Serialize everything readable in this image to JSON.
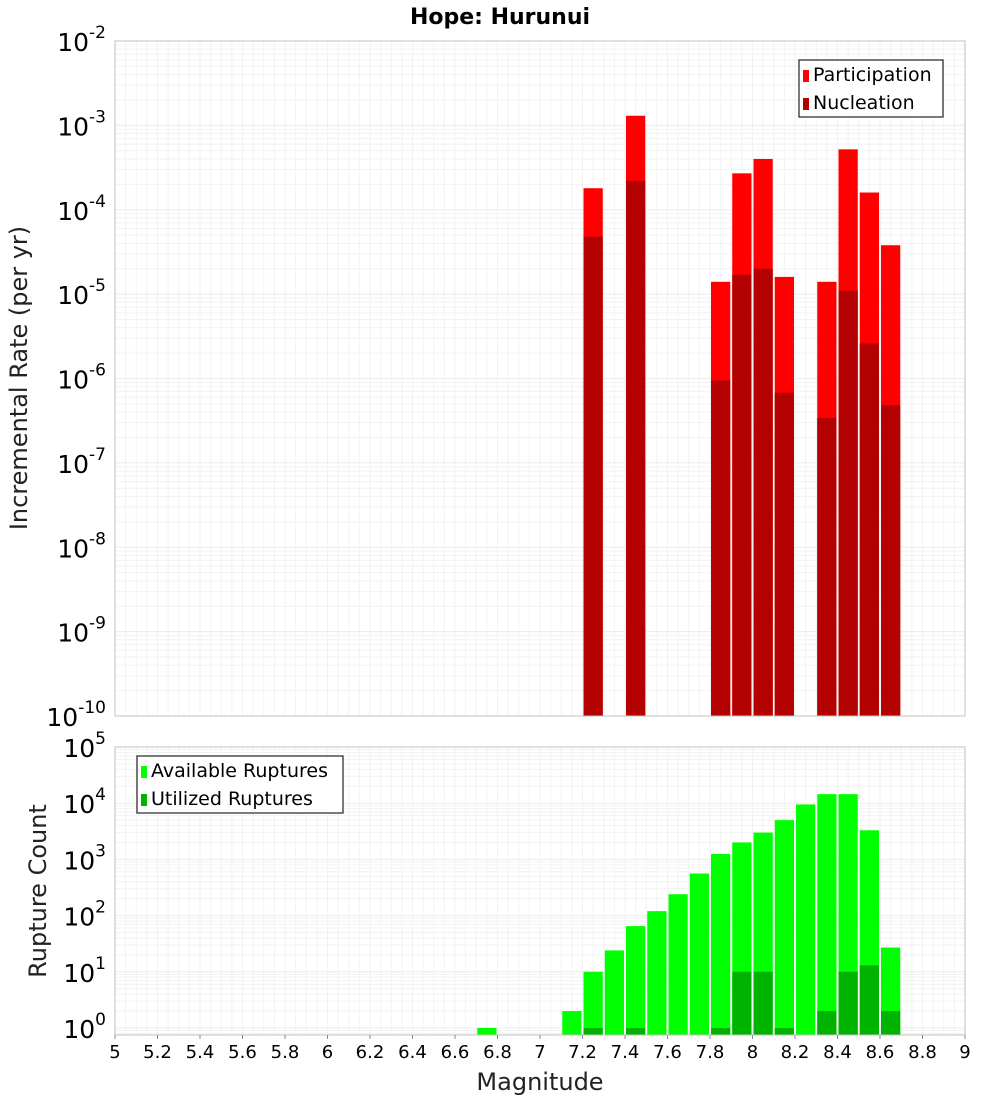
{
  "chart_data": [
    {
      "type": "bar",
      "title": "Hope: Hurunui",
      "ylabel": "Incremental Rate (per yr)",
      "xlabel": "",
      "yscale": "log",
      "xlim": [
        5,
        9
      ],
      "ylim": [
        1e-10,
        0.01
      ],
      "y_tick_exponents": [
        "-10",
        "-9",
        "-8",
        "-7",
        "-6",
        "-5",
        "-4",
        "-3",
        "-2"
      ],
      "y_tick_base": "10",
      "legend_position": "top-right",
      "grid": true,
      "series": [
        {
          "name": "Participation",
          "color": "#ff0000",
          "x": [
            7.25,
            7.45,
            7.85,
            7.95,
            8.05,
            8.15,
            8.35,
            8.45,
            8.55,
            8.65
          ],
          "values": [
            0.00018,
            0.0013,
            1.4e-05,
            0.00027,
            0.0004,
            1.6e-05,
            1.4e-05,
            0.00052,
            0.00016,
            3.8e-05
          ]
        },
        {
          "name": "Nucleation",
          "color": "#b30000",
          "x": [
            7.25,
            7.45,
            7.85,
            7.95,
            8.05,
            8.15,
            8.35,
            8.45,
            8.55,
            8.65
          ],
          "values": [
            4.8e-05,
            0.00022,
            9.5e-07,
            1.7e-05,
            2e-05,
            6.8e-07,
            3.4e-07,
            1.1e-05,
            2.6e-06,
            4.8e-07
          ]
        }
      ]
    },
    {
      "type": "bar",
      "title": "",
      "ylabel": "Rupture Count",
      "xlabel": "Magnitude",
      "yscale": "log",
      "xlim": [
        5,
        9
      ],
      "ylim": [
        0.75,
        100000.0
      ],
      "y_tick_exponents": [
        "0",
        "1",
        "2",
        "3",
        "4",
        "5"
      ],
      "y_tick_base": "10",
      "x_ticks": [
        "5",
        "5.2",
        "5.4",
        "5.6",
        "5.8",
        "6",
        "6.2",
        "6.4",
        "6.6",
        "6.8",
        "7",
        "7.2",
        "7.4",
        "7.6",
        "7.8",
        "8",
        "8.2",
        "8.4",
        "8.6",
        "8.8",
        "9"
      ],
      "legend_position": "top-left",
      "grid": true,
      "series": [
        {
          "name": "Available Ruptures",
          "color": "#00ff00",
          "x": [
            6.75,
            7.15,
            7.25,
            7.35,
            7.45,
            7.55,
            7.65,
            7.75,
            7.85,
            7.95,
            8.05,
            8.15,
            8.25,
            8.35,
            8.45,
            8.55,
            8.65
          ],
          "values": [
            1,
            2,
            10,
            24,
            65,
            120,
            240,
            560,
            1250,
            2000,
            3000,
            5000,
            9500,
            14500,
            14500,
            3300,
            27
          ]
        },
        {
          "name": "Utilized Ruptures",
          "color": "#00b300",
          "x": [
            7.25,
            7.45,
            7.85,
            7.95,
            8.05,
            8.15,
            8.35,
            8.45,
            8.55,
            8.65
          ],
          "values": [
            1,
            1,
            1,
            10,
            10,
            1,
            2,
            10,
            13,
            2
          ]
        }
      ]
    }
  ]
}
